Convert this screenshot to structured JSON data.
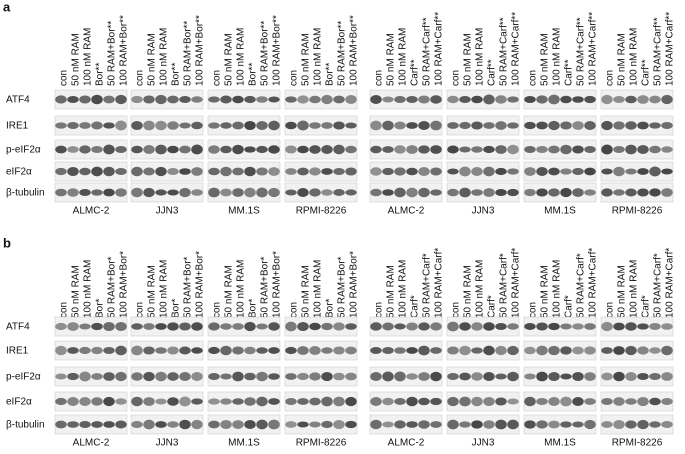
{
  "panels": [
    {
      "label": "a",
      "rows": [
        "ATF4",
        "IRE1",
        "p-eIF2α",
        "eIF2α",
        "β-tubulin"
      ],
      "groups": [
        {
          "lanes": [
            "con",
            "50 nM RAM",
            "100 nM RAM",
            "Bor**",
            "50 RAM+Bor**",
            "100 RAM+Bor**"
          ],
          "cell_line": "ALMC-2"
        },
        {
          "lanes": [
            "con",
            "50 nM RAM",
            "100 nM RAM",
            "Bor**",
            "50 RAM+Bor**",
            "100 RAM+Bor**"
          ],
          "cell_line": "JJN3"
        },
        {
          "lanes": [
            "con",
            "50 nM RAM",
            "100 nM RAM",
            "Bor**",
            "50 RAM+Bor**",
            "100 RAM+Bor**"
          ],
          "cell_line": "MM.1S"
        },
        {
          "lanes": [
            "con",
            "50 nM RAM",
            "100 nM RAM",
            "Bor**",
            "50 RAM+Bor**",
            "100 RAM+Bor**"
          ],
          "cell_line": "RPMI-8226"
        },
        {
          "lanes": [
            "con",
            "50 nM RAM",
            "100 nM RAM",
            "Carf**",
            "50 RAM+Carf**",
            "100 RAM+Carf**"
          ],
          "cell_line": "ALMC-2"
        },
        {
          "lanes": [
            "con",
            "50 nM RAM",
            "100 nM RAM",
            "Carf**",
            "50 RAM+Carf**",
            "100 RAM+Carf**"
          ],
          "cell_line": "JJN3"
        },
        {
          "lanes": [
            "con",
            "50 nM RAM",
            "100 nM RAM",
            "Carf**",
            "50 RAM+Carf**",
            "100 RAM+Carf**"
          ],
          "cell_line": "MM.1S"
        },
        {
          "lanes": [
            "con",
            "50 nM RAM",
            "100 nM RAM",
            "Carf**",
            "50 RAM+Carf**",
            "100 RAM+Carf**"
          ],
          "cell_line": "RPMI-8226"
        }
      ]
    },
    {
      "label": "b",
      "rows": [
        "ATF4",
        "IRE1",
        "p-eIF2α",
        "eIF2α",
        "β-tubulin"
      ],
      "groups": [
        {
          "lanes": [
            "con",
            "50 nM RAM",
            "100 nM RAM",
            "Bor*",
            "50 RAM+Bor*",
            "100 RAM+Bor*"
          ],
          "cell_line": "ALMC-2"
        },
        {
          "lanes": [
            "con",
            "50 nM RAM",
            "100 nM RAM",
            "Bor*",
            "50 RAM+Bor*",
            "100 RAM+Bor*"
          ],
          "cell_line": "JJN3"
        },
        {
          "lanes": [
            "con",
            "50 nM RAM",
            "100 nM RAM",
            "Bor*",
            "50 RAM+Bor*",
            "100 RAM+Bor*"
          ],
          "cell_line": "MM.1S"
        },
        {
          "lanes": [
            "con",
            "50 nM RAM",
            "100 nM RAM",
            "Bor*",
            "50 RAM+Bor*",
            "100 RAM+Bor*"
          ],
          "cell_line": "RPMI-8226"
        },
        {
          "lanes": [
            "con",
            "50 nM RAM",
            "100 nM RAM",
            "Carf*",
            "50 RAM+Carf*",
            "100 RAM+Carf*"
          ],
          "cell_line": "ALMC-2"
        },
        {
          "lanes": [
            "con",
            "50 nM RAM",
            "100 nM RAM",
            "Carf*",
            "50 RAM+Carf*",
            "100 RAM+Carf*"
          ],
          "cell_line": "JJN3"
        },
        {
          "lanes": [
            "con",
            "50 nM RAM",
            "100 nM RAM",
            "Carf*",
            "50 RAM+Carf*",
            "100 RAM+Carf*"
          ],
          "cell_line": "MM.1S"
        },
        {
          "lanes": [
            "con",
            "50 nM RAM",
            "100 nM RAM",
            "Carf*",
            "50 RAM+Carf*",
            "100 RAM+Carf*"
          ],
          "cell_line": "RPMI-8226"
        }
      ]
    }
  ]
}
